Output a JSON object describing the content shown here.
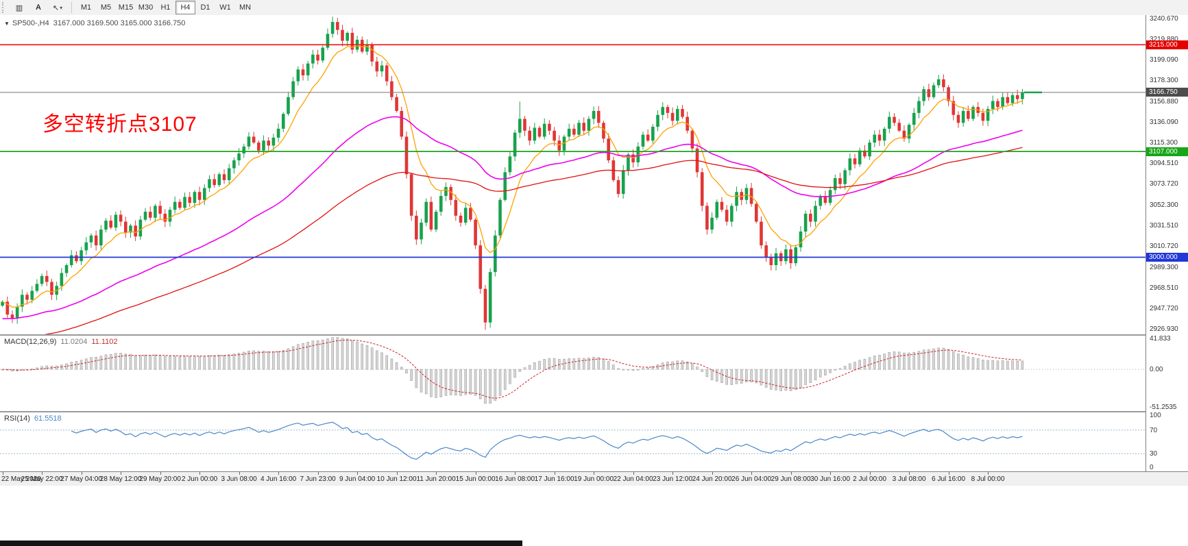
{
  "toolbar": {
    "tools": [
      {
        "name": "bar-chart-icon",
        "glyph": "▥"
      },
      {
        "name": "text-tool-button",
        "label": "A"
      },
      {
        "name": "cursor-tool-button",
        "glyph": "↖",
        "caret": "▾"
      }
    ],
    "timeframes": [
      "M1",
      "M5",
      "M15",
      "M30",
      "H1",
      "H4",
      "D1",
      "W1",
      "MN"
    ],
    "active_timeframe": "H4"
  },
  "header": {
    "collapse_glyph": "▼",
    "symbol_period": "SP500-,H4",
    "ohlc": "3167.000 3169.500 3165.000 3166.750"
  },
  "annotation": {
    "text": "多空转折点3107",
    "color": "#FF0000"
  },
  "price_axis": {
    "labels": [
      "3240.670",
      "3219.880",
      "3199.090",
      "3178.300",
      "3156.880",
      "3136.090",
      "3115.300",
      "3094.510",
      "3073.720",
      "3052.300",
      "3031.510",
      "3010.720",
      "2989.300",
      "2968.510",
      "2947.720",
      "2926.930"
    ]
  },
  "hlines": [
    {
      "price": 3215.0,
      "label": "3215.000",
      "color": "#F01010",
      "width": 1.6,
      "box": "#E40000"
    },
    {
      "price": 3166.75,
      "label": "3166.750",
      "color": "#777777",
      "width": 1.0,
      "box": "#4d4d4d"
    },
    {
      "price": 3107.0,
      "label": "3107.000",
      "color": "#1EA11E",
      "width": 1.8,
      "box": "#17A617"
    },
    {
      "price": 3000.0,
      "label": "3000.000",
      "color": "#2038D8",
      "width": 1.8,
      "box": "#2038D8"
    }
  ],
  "chart_data": {
    "type": "candlestick",
    "symbol": "SP500-",
    "timeframe": "H4",
    "title": "SP500-,H4 3167.000 3169.500 3165.000 3166.750",
    "price_range": {
      "top": 3245.0,
      "bottom": 2922.0
    },
    "bars_per_label": 8,
    "closes": [
      2955,
      2942,
      2938,
      2950,
      2962,
      2957,
      2966,
      2973,
      2981,
      2975,
      2962,
      2971,
      2984,
      2992,
      3002,
      2996,
      3007,
      3015,
      3022,
      3012,
      3028,
      3037,
      3030,
      3043,
      3036,
      3025,
      3032,
      3021,
      3038,
      3046,
      3040,
      3052,
      3044,
      3036,
      3048,
      3056,
      3050,
      3061,
      3055,
      3066,
      3058,
      3070,
      3079,
      3073,
      3084,
      3078,
      3090,
      3098,
      3105,
      3112,
      3122,
      3116,
      3108,
      3118,
      3113,
      3121,
      3130,
      3145,
      3162,
      3178,
      3190,
      3184,
      3196,
      3205,
      3199,
      3212,
      3226,
      3238,
      3230,
      3219,
      3227,
      3210,
      3220,
      3208,
      3215,
      3198,
      3188,
      3194,
      3178,
      3162,
      3148,
      3122,
      3084,
      3042,
      3018,
      3035,
      3056,
      3028,
      3046,
      3062,
      3071,
      3058,
      3042,
      3035,
      3050,
      3038,
      3012,
      2968,
      2934,
      2985,
      3022,
      3058,
      3086,
      3102,
      3126,
      3140,
      3128,
      3118,
      3131,
      3122,
      3135,
      3128,
      3118,
      3108,
      3122,
      3130,
      3124,
      3136,
      3128,
      3140,
      3148,
      3136,
      3120,
      3098,
      3078,
      3064,
      3088,
      3104,
      3096,
      3112,
      3124,
      3118,
      3132,
      3144,
      3152,
      3146,
      3138,
      3150,
      3142,
      3128,
      3110,
      3086,
      3052,
      3028,
      3040,
      3056,
      3048,
      3036,
      3052,
      3066,
      3058,
      3070,
      3054,
      3036,
      3012,
      3000,
      2992,
      3004,
      2996,
      3008,
      2994,
      3010,
      3026,
      3044,
      3036,
      3052,
      3062,
      3055,
      3068,
      3080,
      3074,
      3088,
      3100,
      3094,
      3108,
      3102,
      3116,
      3124,
      3118,
      3130,
      3142,
      3136,
      3128,
      3120,
      3134,
      3146,
      3158,
      3170,
      3162,
      3174,
      3180,
      3172,
      3158,
      3144,
      3136,
      3148,
      3140,
      3152,
      3146,
      3138,
      3150,
      3158,
      3152,
      3162,
      3156,
      3164,
      3160,
      3166.75
    ],
    "time_labels": [
      "22 May 2020",
      "25 May 22:00",
      "27 May 04:00",
      "28 May 12:00",
      "29 May 20:00",
      "2 Jun 00:00",
      "3 Jun 08:00",
      "4 Jun 16:00",
      "7 Jun 23:00",
      "9 Jun 04:00",
      "10 Jun 12:00",
      "11 Jun 20:00",
      "15 Jun 00:00",
      "16 Jun 08:00",
      "17 Jun 16:00",
      "19 Jun 00:00",
      "22 Jun 04:00",
      "23 Jun 12:00",
      "24 Jun 20:00",
      "26 Jun 04:00",
      "29 Jun 08:00",
      "30 Jun 16:00",
      "2 Jul 00:00",
      "3 Jul 08:00",
      "6 Jul 16:00",
      "8 Jul 00:00"
    ],
    "overlays": [
      {
        "name": "ma-fast",
        "color": "#FFA000",
        "period": 9
      },
      {
        "name": "ma-mid",
        "color": "#EE00EE",
        "period": 50
      },
      {
        "name": "ma-slow",
        "color": "#E01010",
        "period": 95
      }
    ]
  },
  "candles": {
    "up_color": "#17A24D",
    "down_color": "#E03636"
  },
  "macd": {
    "title": "MACD(12,26,9)",
    "value_main": "11.0204",
    "value_signal": "11.1102",
    "axis": [
      "41.833",
      "0.00",
      "-51.2535"
    ],
    "max": 42,
    "min": -52,
    "bar_color": "#d6d6d6",
    "bar_stroke": "#a0a0a0",
    "signal_color": "#d02020"
  },
  "rsi": {
    "title": "RSI(14)",
    "value": "61.5518",
    "axis": [
      "100",
      "70",
      "30",
      "0"
    ],
    "levels": [
      70,
      30
    ],
    "line_color": "#4a86c8",
    "level_color": "#9db7cc"
  }
}
